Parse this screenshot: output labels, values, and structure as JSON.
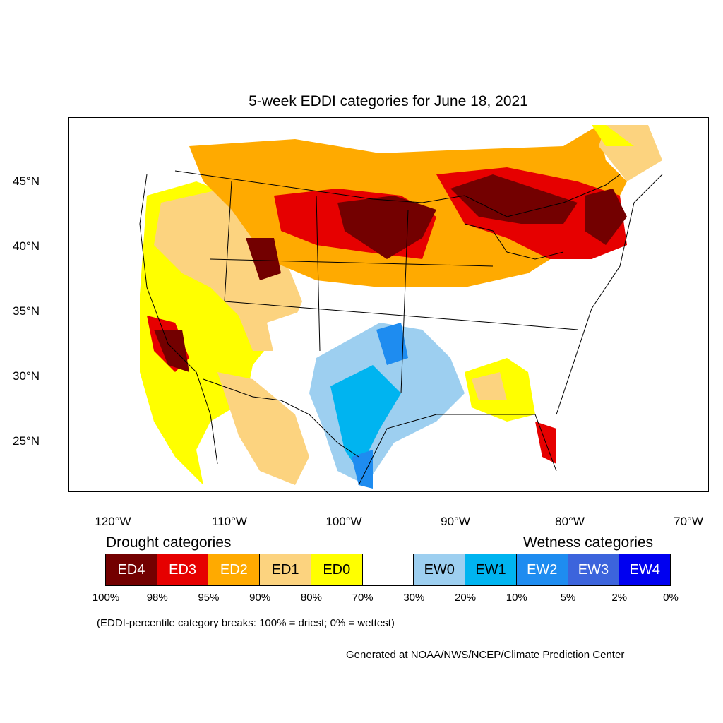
{
  "map": {
    "title": "5-week EDDI categories for June 18, 2021",
    "lat_labels": [
      "45°N",
      "40°N",
      "35°N",
      "30°N",
      "25°N"
    ],
    "lon_labels": [
      "120°W",
      "110°W",
      "100°W",
      "90°W",
      "80°W",
      "70°W"
    ]
  },
  "legend": {
    "drought_heading": "Drought categories",
    "wetness_heading": "Wetness categories",
    "categories": [
      {
        "label": "ED4",
        "color": "#730000",
        "text_color": "#ffffff"
      },
      {
        "label": "ED3",
        "color": "#e60000",
        "text_color": "#ffffff"
      },
      {
        "label": "ED2",
        "color": "#ffaa00",
        "text_color": "#ffffff"
      },
      {
        "label": "ED1",
        "color": "#fcd37f",
        "text_color": "#000000"
      },
      {
        "label": "ED0",
        "color": "#ffff00",
        "text_color": "#000000"
      },
      {
        "label": "",
        "color": "#ffffff",
        "text_color": "#000000"
      },
      {
        "label": "EW0",
        "color": "#9dcff0",
        "text_color": "#000000"
      },
      {
        "label": "EW1",
        "color": "#00b4f0",
        "text_color": "#000000"
      },
      {
        "label": "EW2",
        "color": "#1e8cf0",
        "text_color": "#ffffff"
      },
      {
        "label": "EW3",
        "color": "#3c64dc",
        "text_color": "#ffffff"
      },
      {
        "label": "EW4",
        "color": "#0000f0",
        "text_color": "#ffffff"
      }
    ],
    "percentiles": [
      "100%",
      "98%",
      "95%",
      "90%",
      "80%",
      "70%",
      "30%",
      "20%",
      "10%",
      "5%",
      "2%",
      "0%"
    ]
  },
  "note": "(EDDI-percentile category breaks: 100% = driest; 0% = wettest)",
  "credit": "Generated at NOAA/NWS/NCEP/Climate Prediction Center"
}
